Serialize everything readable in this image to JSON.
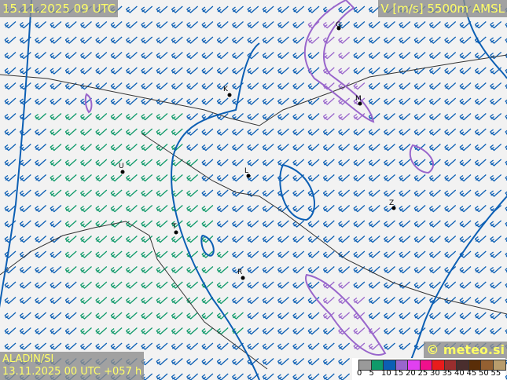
{
  "header": {
    "valid_time": "15.11.2025 09 UTC",
    "parameter": "V [m/s] 5500m AMSL"
  },
  "footer": {
    "model": "ALADIN/SI",
    "run": "13.11.2025 00 UTC +057 h",
    "copyright": "© meteo.si"
  },
  "legend": {
    "ticks": [
      "0",
      "5",
      "10",
      "15",
      "20",
      "25",
      "30",
      "35",
      "40",
      "45",
      "50",
      "55"
    ],
    "colors": [
      "#9a9a9a",
      "#0f9a6a",
      "#0c5fb4",
      "#9966cc",
      "#e040f0",
      "#f0108c",
      "#e81c1c",
      "#9a2e2e",
      "#4a2e2e",
      "#5a2e08",
      "#946032",
      "#b89c6c"
    ]
  },
  "cities": [
    {
      "label": "G"
    },
    {
      "label": "K"
    },
    {
      "label": "M"
    },
    {
      "label": "U"
    },
    {
      "label": "L"
    },
    {
      "label": "Z"
    },
    {
      "label": "T"
    },
    {
      "label": "R"
    }
  ],
  "map": {
    "barb_colors": {
      "slow": "#0f9a6a",
      "medium": "#0c5fb4",
      "fast": "#9966cc"
    }
  }
}
